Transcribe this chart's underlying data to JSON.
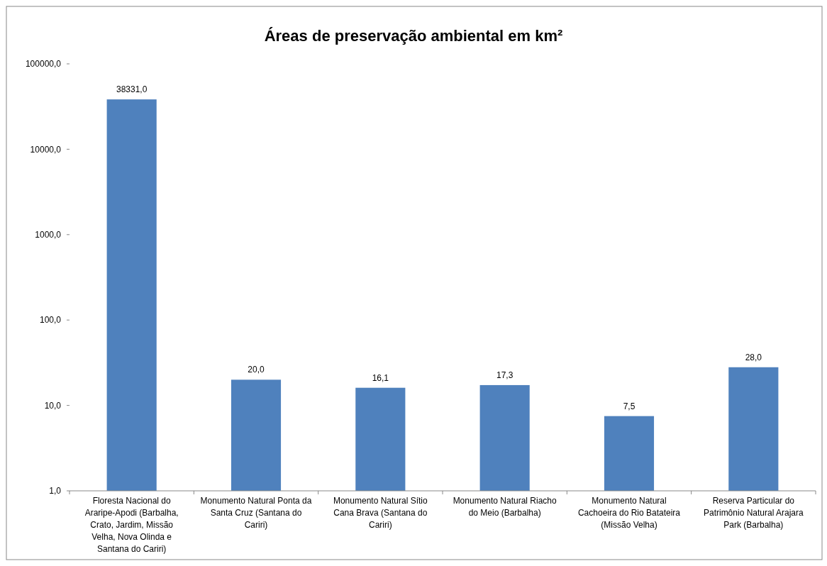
{
  "chart_data": {
    "type": "bar",
    "title": "Áreas de preservação ambiental em km²",
    "categories": [
      "Floresta Nacional do Araripe-Apodi (Barbalha, Crato, Jardim, Missão Velha, Nova Olinda e Santana do Cariri)",
      "Monumento Natural Ponta da Santa Cruz (Santana do Cariri)",
      "Monumento Natural Sítio Cana Brava (Santana do Cariri)",
      "Monumento Natural Riacho do Meio (Barbalha)",
      "Monumento Natural Cachoeira do Rio Batateira (Missão Velha)",
      "Reserva Particular do Patrimônio Natural Arajara Park (Barbalha)"
    ],
    "values": [
      38331,
      20,
      16.1,
      17.3,
      7.5,
      28
    ],
    "value_labels": [
      "38331,0",
      "20,0",
      "16,1",
      "17,3",
      "7,5",
      "28,0"
    ],
    "color": "#4f81bd",
    "log": true,
    "ylim": [
      1,
      100000
    ],
    "yticks": [
      {
        "value": 1,
        "label": "1,0"
      },
      {
        "value": 10,
        "label": "10,0"
      },
      {
        "value": 100,
        "label": "100,0"
      },
      {
        "value": 1000,
        "label": "1000,0"
      },
      {
        "value": 10000,
        "label": "10000,0"
      },
      {
        "value": 100000,
        "label": "100000,0"
      }
    ],
    "grid": false
  }
}
